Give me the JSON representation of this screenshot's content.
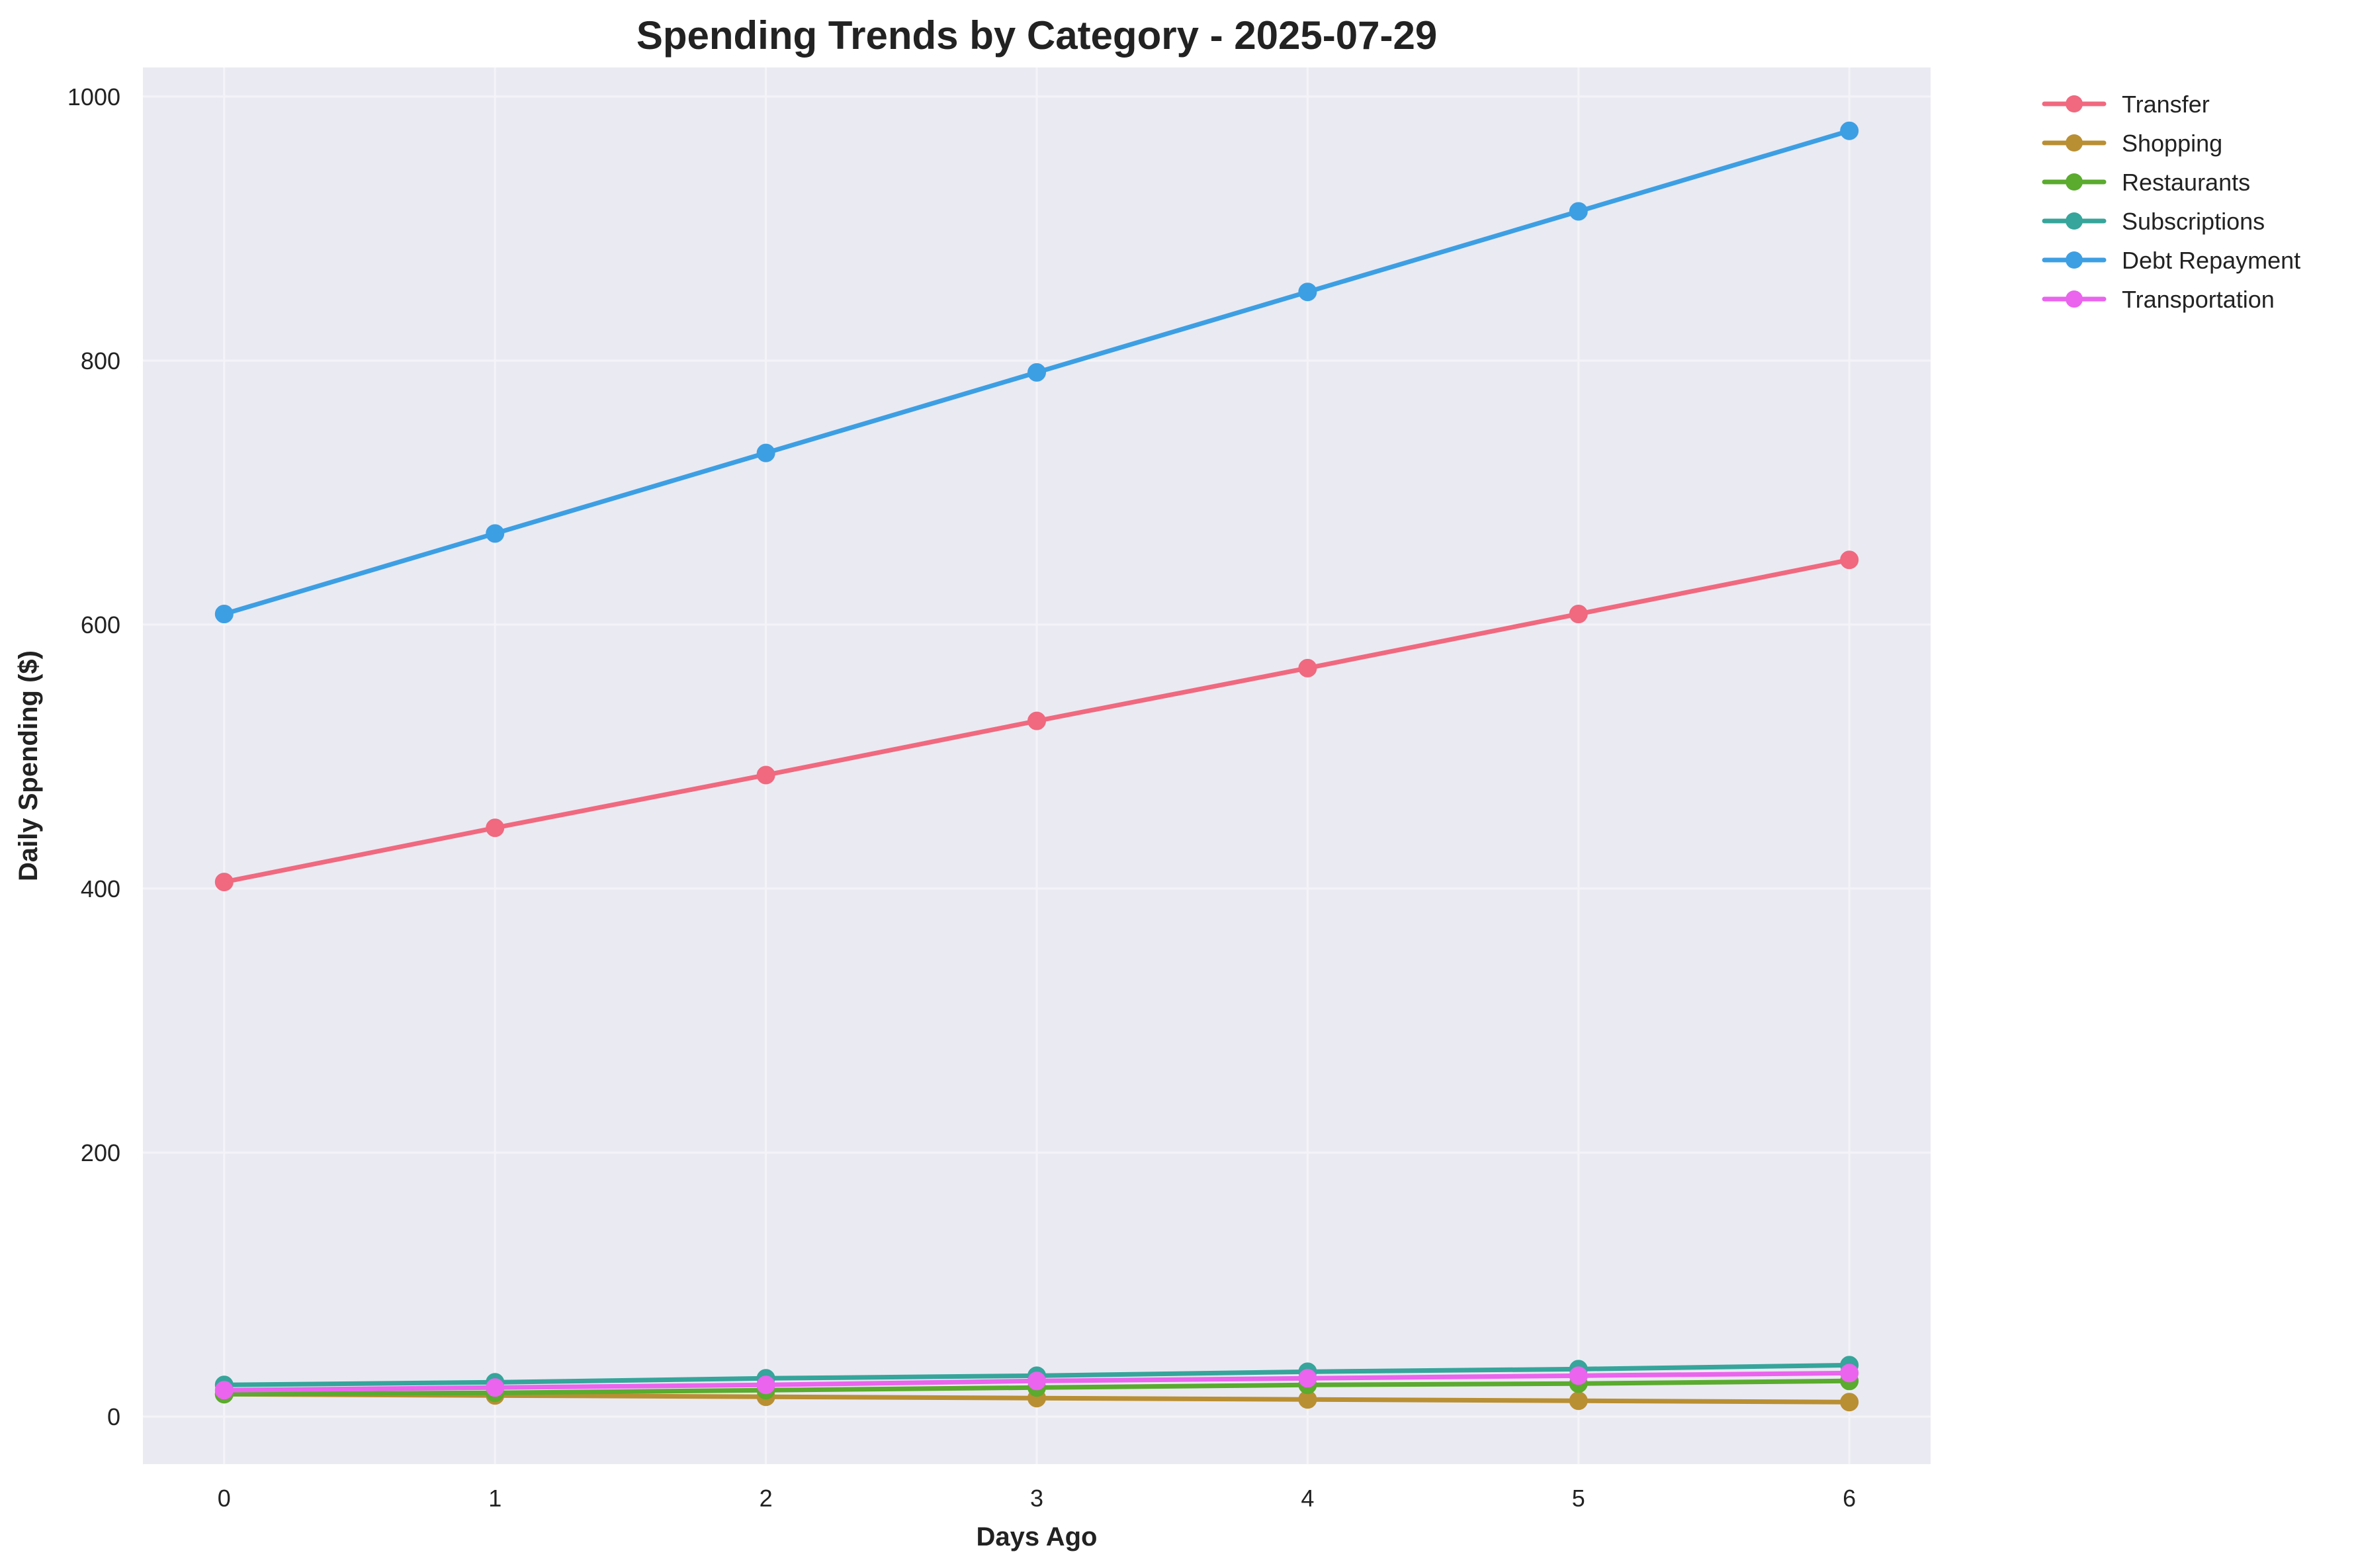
{
  "chart_data": {
    "type": "line",
    "title": "Spending Trends by Category - 2025-07-29",
    "xlabel": "Days Ago",
    "ylabel": "Daily Spending ($)",
    "x": [
      0,
      1,
      2,
      3,
      4,
      5,
      6
    ],
    "xlim": [
      -0.3,
      6.3
    ],
    "ylim": [
      -36,
      1022
    ],
    "xticks": [
      "0",
      "1",
      "2",
      "3",
      "4",
      "5",
      "6"
    ],
    "yticks": [
      "0",
      "200",
      "400",
      "600",
      "800",
      "1000"
    ],
    "grid": true,
    "legend_position": "outside-top-right",
    "background": "#eaeaf2",
    "series": [
      {
        "name": "Transfer",
        "color": "#f0697f",
        "values": [
          405,
          446,
          486,
          527,
          567,
          608,
          649
        ]
      },
      {
        "name": "Shopping",
        "color": "#b98f33",
        "values": [
          17,
          16,
          15,
          14,
          13,
          12,
          11
        ]
      },
      {
        "name": "Restaurants",
        "color": "#5aab2e",
        "values": [
          17,
          18,
          20,
          22,
          24,
          25,
          27
        ]
      },
      {
        "name": "Subscriptions",
        "color": "#36a59b",
        "values": [
          24,
          26,
          29,
          31,
          34,
          36,
          39
        ]
      },
      {
        "name": "Debt Repayment",
        "color": "#3d9fe3",
        "values": [
          608,
          669,
          730,
          791,
          852,
          913,
          974
        ]
      },
      {
        "name": "Transportation",
        "color": "#ea64ee",
        "values": [
          20,
          22,
          24,
          27,
          29,
          31,
          33
        ]
      }
    ]
  }
}
